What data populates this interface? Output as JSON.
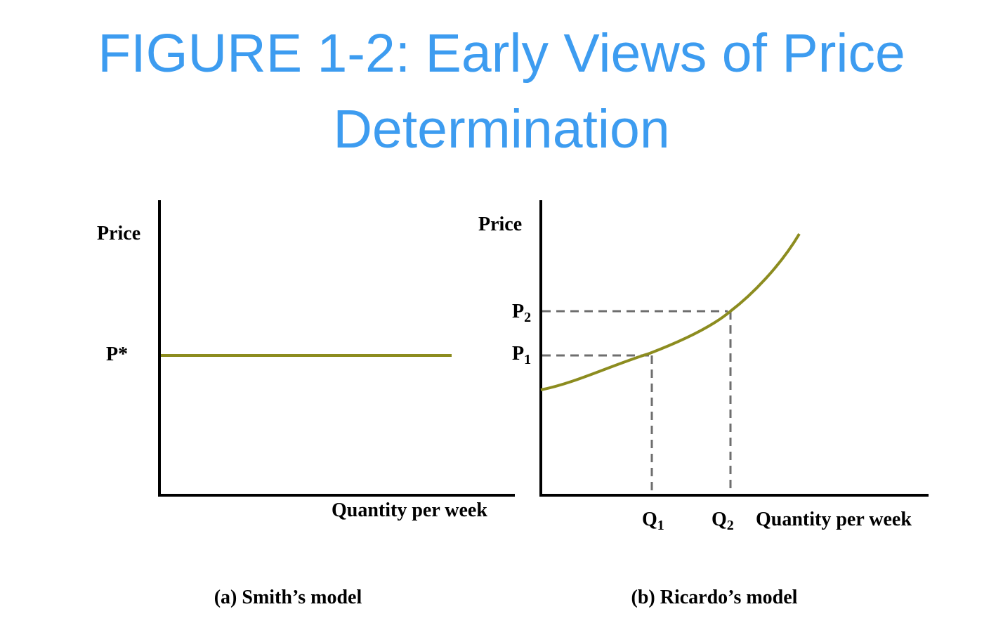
{
  "title": {
    "line1": "FIGURE 1-2: Early Views of Price",
    "line2": "Determination"
  },
  "colors": {
    "title": "#3d9cf0",
    "curve": "#8c8c1f",
    "guide": "#6e6e6e",
    "axis": "#000000"
  },
  "panel_a": {
    "y_axis_label": "Price",
    "x_axis_label": "Quantity per week",
    "price_label": "P*",
    "caption": "(a) Smith’s model",
    "line_kind": "horizontal"
  },
  "panel_b": {
    "y_axis_label": "Price",
    "x_axis_label": "Quantity per week",
    "p1_label": "P",
    "p1_sub": "1",
    "p2_label": "P",
    "p2_sub": "2",
    "q1_label": "Q",
    "q1_sub": "1",
    "q2_label": "Q",
    "q2_sub": "2",
    "caption": "(b) Ricardo’s model",
    "curve_kind": "upward-sloping convex"
  }
}
